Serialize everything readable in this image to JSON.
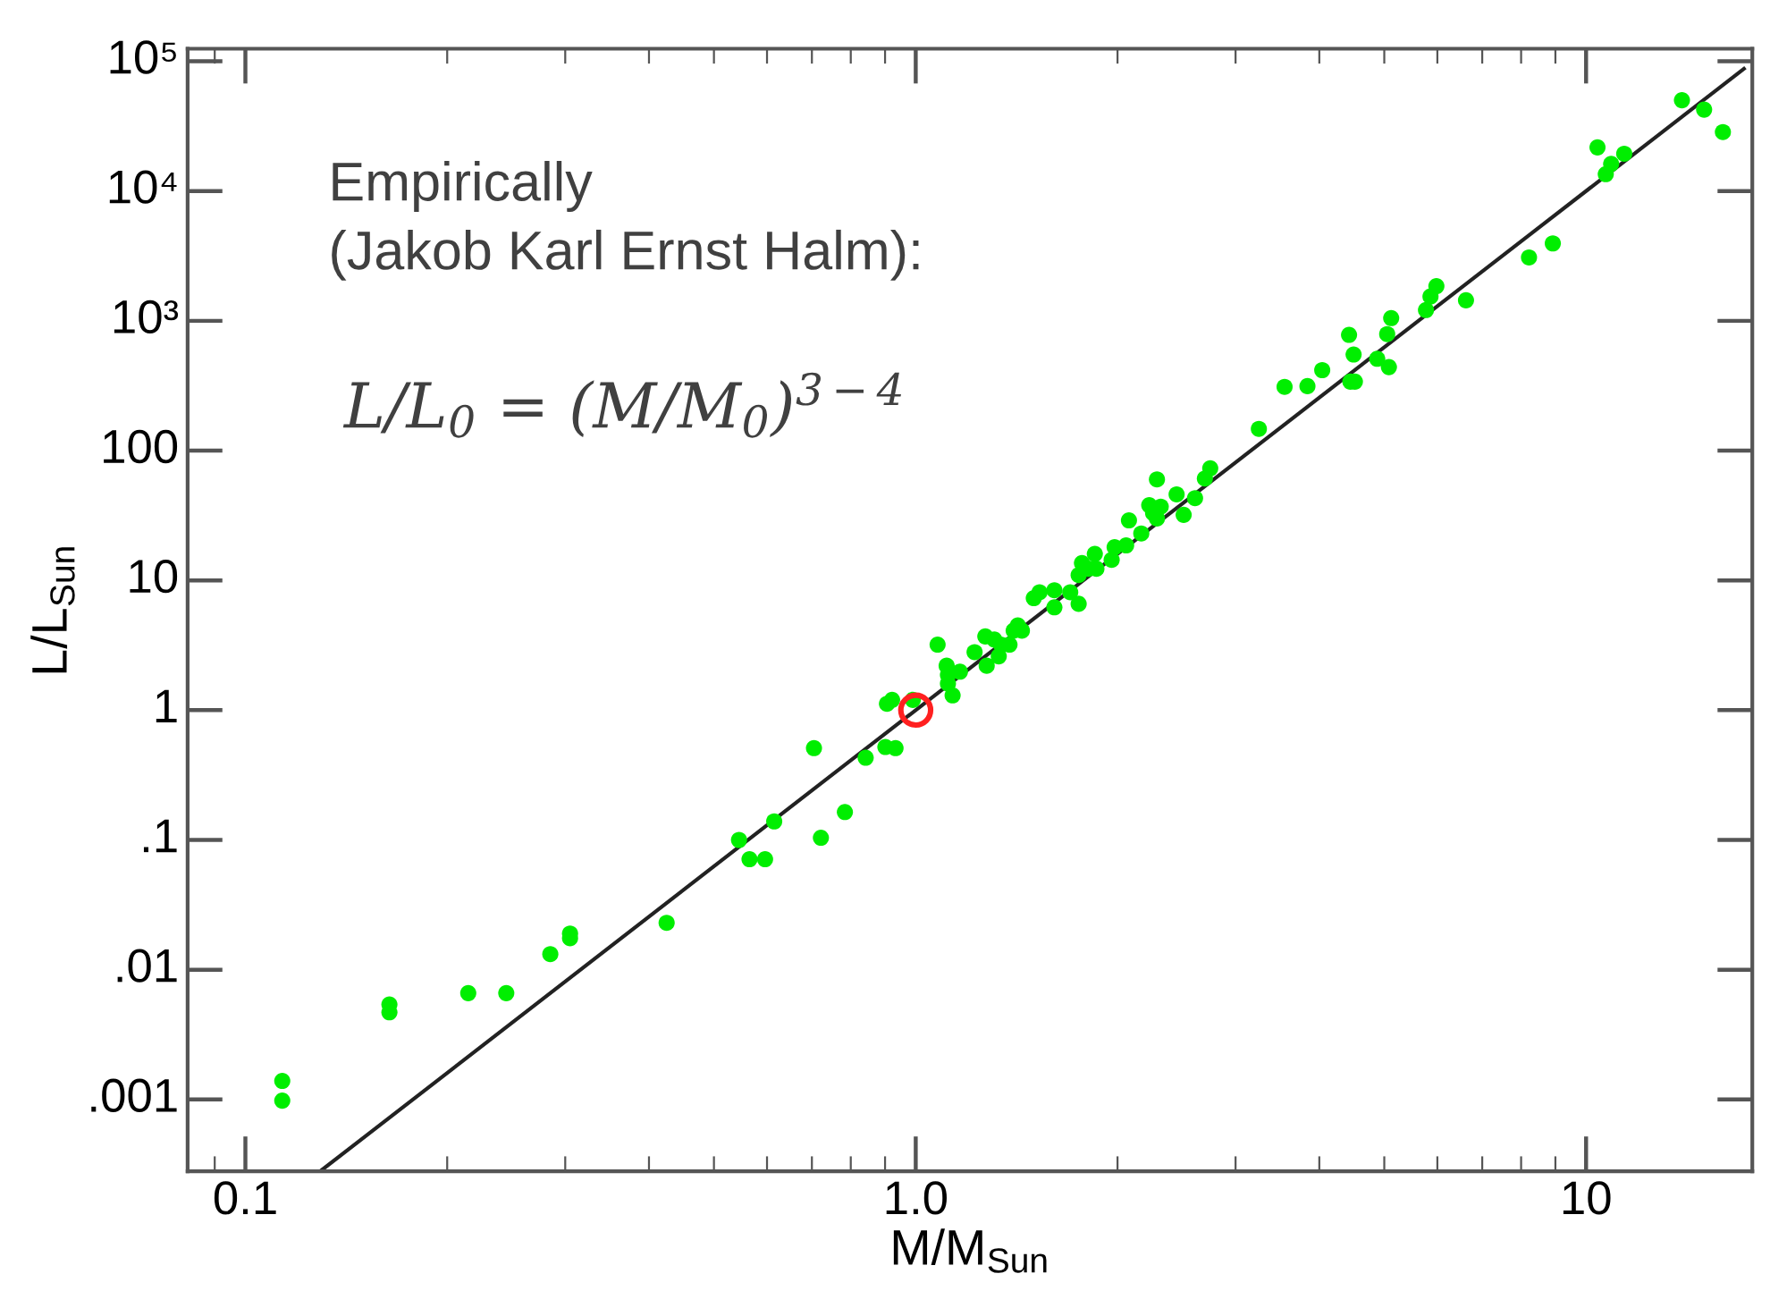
{
  "chart_data": {
    "type": "scatter",
    "xlabel": "M/M$_{Sun}$",
    "ylabel": "L/L$_{Sun}$",
    "log": "xy",
    "grid": false,
    "xlim": [
      0.082,
      17.7
    ],
    "ylim": [
      0.00028,
      125000
    ],
    "xticks": [
      {
        "value": 0.1,
        "label": "0.1"
      },
      {
        "value": 1,
        "label": "1.0"
      },
      10
    ],
    "yticks": [
      {
        "value": 0.001,
        "label": ".001"
      },
      {
        "value": 0.01,
        "label": ".01"
      },
      {
        "value": 0.1,
        "label": ".1"
      },
      1,
      10,
      100,
      {
        "value": 1000,
        "label": "10³"
      },
      {
        "value": 10000,
        "label": "10⁴"
      },
      {
        "value": 100000,
        "label": "10⁵"
      }
    ],
    "annotations": [
      "Empirically\n(Jakob Karl Ernst Halm):",
      "L/L$_{0}$ = (M/M$_{0}$)$^{3−4}$"
    ],
    "series": [
      {
        "type": "line",
        "color": "#222222",
        "line_style": "solid",
        "marker": "none",
        "x": [
          0.13,
          17.2
        ],
        "values": [
          0.000286,
          87500
        ]
      },
      {
        "color": "#00ee00",
        "marker": "circle",
        "x": [
          0.1135,
          0.1135,
          0.164,
          0.164,
          0.215,
          0.245,
          0.285,
          0.305,
          0.305,
          0.425,
          0.545,
          0.565,
          0.596,
          0.615,
          0.705,
          0.722,
          0.784,
          0.842,
          0.901,
          0.933,
          0.906,
          0.922,
          0.99,
          1.135,
          1.117,
          1.078,
          1.112,
          1.117,
          1.164,
          1.224,
          1.27,
          1.276,
          1.31,
          1.33,
          1.34,
          1.38,
          1.4,
          1.42,
          1.44,
          1.5,
          1.53,
          1.61,
          1.61,
          1.7,
          1.75,
          1.75,
          1.77,
          1.81,
          1.85,
          1.86,
          1.96,
          1.98,
          2.06,
          2.08,
          2.17,
          2.23,
          2.26,
          2.29,
          2.29,
          2.32,
          2.45,
          2.51,
          2.61,
          2.7,
          2.75,
          3.25,
          3.55,
          3.84,
          4.04,
          4.43,
          4.5,
          4.52,
          4.45,
          4.88,
          5.05,
          5.12,
          5.08,
          5.77,
          5.86,
          5.98,
          6.62,
          8.22,
          8.92,
          10.4,
          10.7,
          10.9,
          11.4,
          13.9,
          15,
          16
        ],
        "values": [
          0.00139,
          0.00098,
          0.0054,
          0.0047,
          0.0066,
          0.0066,
          0.0132,
          0.0175,
          0.019,
          0.023,
          0.1,
          0.071,
          0.071,
          0.139,
          0.51,
          0.104,
          0.164,
          0.43,
          0.52,
          0.51,
          1.12,
          1.2,
          1.2,
          1.3,
          1.6,
          3.2,
          2.2,
          1.87,
          1.98,
          2.8,
          3.7,
          2.2,
          3.5,
          2.6,
          3.2,
          3.2,
          4.1,
          4.5,
          4.1,
          7.3,
          8.1,
          8.4,
          6.2,
          8.1,
          6.6,
          11,
          13.6,
          12.3,
          16,
          12.3,
          14.4,
          18,
          18.6,
          29,
          23,
          38,
          33,
          60,
          30,
          37,
          46,
          32,
          43,
          61,
          73,
          147,
          310,
          314,
          417,
          780,
          550,
          340,
          340,
          510,
          790,
          1050,
          440,
          1210,
          1540,
          1850,
          1440,
          3080,
          3950,
          21700,
          13500,
          16200,
          19400,
          50100,
          42400,
          28500
        ]
      },
      {
        "color": "#ff2020",
        "marker": "circle",
        "x": [
          1.0
        ],
        "values": [
          1.0
        ]
      }
    ]
  }
}
